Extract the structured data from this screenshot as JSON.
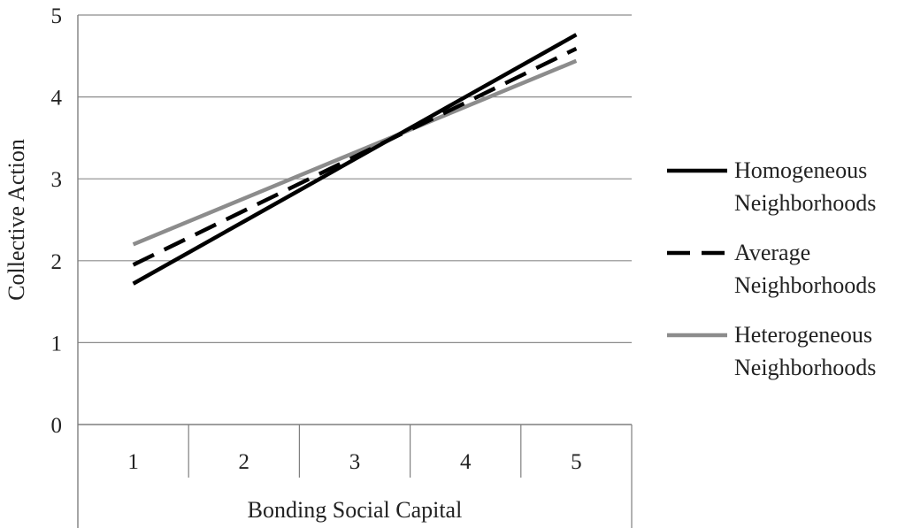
{
  "chart_data": {
    "type": "line",
    "title": "",
    "xlabel": "Bonding Social Capital",
    "ylabel": "Collective Action",
    "categories": [
      "1",
      "2",
      "3",
      "4",
      "5"
    ],
    "ylim": [
      0,
      5
    ],
    "yticks": [
      "0",
      "1",
      "2",
      "3",
      "4",
      "5"
    ],
    "grid": true,
    "legend": "right",
    "series": [
      {
        "name": "Homogeneous Neighborhoods",
        "name_lines": [
          "Homogeneous",
          "Neighborhoods"
        ],
        "values": [
          1.72,
          2.48,
          3.24,
          4.0,
          4.76
        ],
        "color": "#000000",
        "style": "solid"
      },
      {
        "name": "Average Neighborhoods",
        "name_lines": [
          "Average",
          "Neighborhoods"
        ],
        "values": [
          1.95,
          2.61,
          3.27,
          3.93,
          4.59
        ],
        "color": "#000000",
        "style": "dashed"
      },
      {
        "name": "Heterogeneous Neighborhoods",
        "name_lines": [
          "Heterogeneous",
          "Neighborhoods"
        ],
        "values": [
          2.2,
          2.76,
          3.32,
          3.88,
          4.44
        ],
        "color": "#8c8c8c",
        "style": "solid"
      }
    ]
  }
}
